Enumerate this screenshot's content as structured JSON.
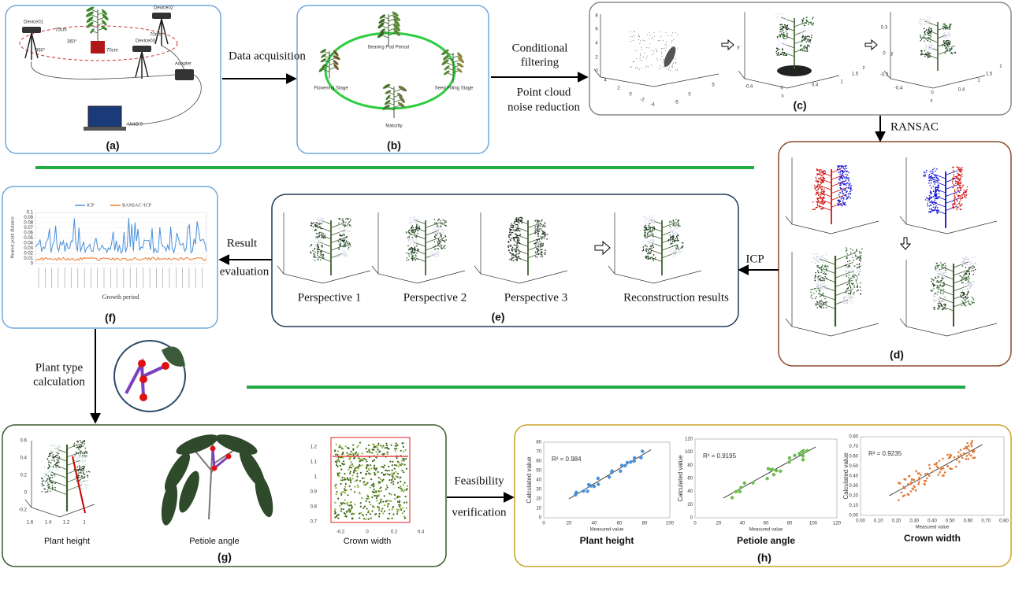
{
  "arrow_labels": {
    "data_acquisition": "Data acquisition",
    "conditional_filtering": [
      "Conditional",
      "filtering"
    ],
    "noise_reduction": [
      "Point cloud",
      "noise reduction"
    ],
    "ransac": "RANSAC",
    "icp": "ICP",
    "result_evaluation": [
      "Result",
      "evaluation"
    ],
    "plant_type": [
      "Plant type",
      "calculation"
    ],
    "feasibility": [
      "Feasibility",
      "verification"
    ]
  },
  "panel_labels": [
    "(a)",
    "(b)",
    "(c)",
    "(d)",
    "(e)",
    "(f)",
    "(g)",
    "(h)"
  ],
  "setup": {
    "devices": [
      "Device01",
      "Device02",
      "Device03"
    ],
    "distances": [
      "70cm",
      "70cm",
      "70cm"
    ],
    "angles": [
      "360°",
      "360°"
    ],
    "adapter": "Adapter",
    "usb": "Usb3.0"
  },
  "stages": [
    "Bearing Pod Period",
    "Flowering Stage",
    "Seed Filling Stage",
    "Maturity"
  ],
  "c_plots": [
    [
      "8",
      "6",
      "4",
      "2",
      "0",
      "4",
      "2",
      "0",
      "-2",
      "-4",
      "-5",
      "0",
      "5"
    ],
    [
      "y",
      "-0.4",
      "0",
      "0.4",
      "x",
      "1",
      "1.5",
      "z"
    ],
    [
      "0.3",
      "0",
      "-0.3",
      "y",
      "-0.4",
      "0",
      "0.4",
      "x",
      "1",
      "1.5",
      "z"
    ]
  ],
  "chart_f": {
    "legend": [
      "ICP",
      "RANSAC+ICP"
    ],
    "ylabel": "Nearest point distance",
    "xlabel": "Growth period",
    "yticks": [
      "0.1",
      "0.09",
      "0.08",
      "0.07",
      "0.06",
      "0.05",
      "0.04",
      "0.03",
      "0.02",
      "0.01",
      "0"
    ]
  },
  "perspectives": [
    "Perspective 1",
    "Perspective 2",
    "Perspective 3",
    "Reconstruction results"
  ],
  "measures_g": [
    "Plant height",
    "Petiole angle",
    "Crown width"
  ],
  "g_ticks": {
    "height_y": [
      "0.6",
      "0.4",
      "0.2",
      "0",
      "-0.2"
    ],
    "height_x": [
      "1.6",
      "1.4",
      "1.2",
      "1"
    ],
    "crown_y": [
      "1.2",
      "1.1",
      "1",
      "0.9",
      "0.8",
      "0.7"
    ],
    "crown_x": [
      "-0.2",
      "0",
      "0.2",
      "0.4"
    ]
  },
  "chart_h": [
    {
      "title": "Plant height",
      "r2": "R² = 0.984",
      "xlabel": "Measured value",
      "ylabel": "Calculated value",
      "xticks": [
        "0",
        "20",
        "40",
        "60",
        "80",
        "100"
      ],
      "yticks": [
        "0",
        "10",
        "20",
        "30",
        "40",
        "50",
        "60",
        "70",
        "80"
      ]
    },
    {
      "title": "Petiole  angle",
      "r2": "R² = 0.9195",
      "xlabel": "Measured value",
      "ylabel": "Calculated value",
      "xticks": [
        "0",
        "20",
        "40",
        "60",
        "80",
        "100",
        "120"
      ],
      "yticks": [
        "0",
        "20",
        "40",
        "60",
        "80",
        "100",
        "120"
      ]
    },
    {
      "title": "Crown width",
      "r2": "R² = 0.9235",
      "xlabel": "Measured value",
      "ylabel": "Calculated value",
      "xticks": [
        "0.00",
        "0.10",
        "0.20",
        "0.30",
        "0.40",
        "0.50",
        "0.60",
        "0.70",
        "0.80"
      ],
      "yticks": [
        "0.00",
        "0.10",
        "0.20",
        "0.30",
        "0.40",
        "0.50",
        "0.60",
        "0.70",
        "0.80"
      ]
    }
  ]
}
